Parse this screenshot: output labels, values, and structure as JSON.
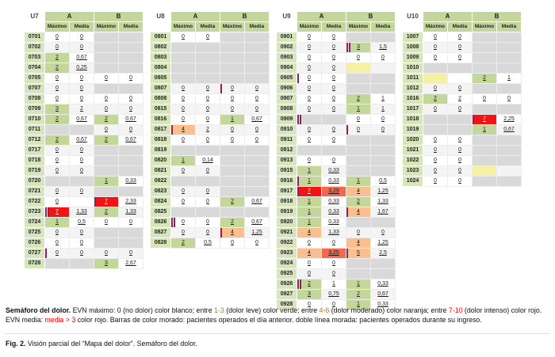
{
  "colors": {
    "header_green": "#c3d69b",
    "id_green": "#d8e4bc",
    "cell_green": "#c4d79b",
    "cell_orange": "#fabf8f",
    "cell_red": "#f01414",
    "media_red": "#f4694b",
    "cell_gray": "#d9d9d9",
    "cell_yellow": "#f4f1a4",
    "bar_purple": "#8e2157",
    "legend_green": "#77933c",
    "legend_orange": "#e36c09",
    "legend_red": "#ff0000"
  },
  "tables": [
    {
      "unit": "U7",
      "groups": [
        "A",
        "B"
      ],
      "subheaders": [
        "Máximo",
        "Media",
        "Máximo",
        "Media"
      ],
      "rows": [
        {
          "id": "0701",
          "a": [
            "0",
            "0"
          ],
          "b": [
            "GRAY",
            "GRAY"
          ]
        },
        {
          "id": "0702",
          "a": [
            "0",
            "0"
          ],
          "b": [
            "GRAY",
            "GRAY"
          ]
        },
        {
          "id": "0703",
          "a": [
            "2",
            "0,67"
          ],
          "b": [
            "GRAY",
            "GRAY"
          ]
        },
        {
          "id": "0704",
          "a": [
            "2",
            "0,25"
          ],
          "b": [
            "GRAY",
            "GRAY"
          ]
        },
        {
          "id": "0705",
          "a": [
            "0",
            "0"
          ],
          "b": [
            "0",
            "0"
          ]
        },
        {
          "id": "0707",
          "a": [
            "0",
            "0"
          ],
          "b": [
            "GRAY",
            "GRAY"
          ]
        },
        {
          "id": "0708",
          "a": [
            "0",
            "0"
          ],
          "b": [
            "0",
            "0"
          ]
        },
        {
          "id": "0709",
          "a": [
            "3",
            "2"
          ],
          "b": [
            "0",
            "0"
          ]
        },
        {
          "id": "0710",
          "a": [
            "2",
            "0,67"
          ],
          "b": [
            "2",
            "0,67"
          ]
        },
        {
          "id": "0711",
          "a": [
            "GRAY",
            "GRAY"
          ],
          "b": [
            "0",
            "0"
          ]
        },
        {
          "id": "0712",
          "a": [
            "2",
            "0,67"
          ],
          "b": [
            "2",
            "0,67"
          ]
        },
        {
          "id": "0717",
          "a": [
            "0",
            "0"
          ],
          "b": [
            "GRAY",
            "GRAY"
          ]
        },
        {
          "id": "0718",
          "a": [
            "0",
            "0"
          ],
          "b": [
            "GRAY",
            "GRAY"
          ]
        },
        {
          "id": "0719",
          "a": [
            "0",
            "0"
          ],
          "b": [
            "GRAY",
            "GRAY"
          ]
        },
        {
          "id": "0720",
          "a": [
            "GRAY",
            "GRAY"
          ],
          "b": [
            "1",
            "0,33"
          ]
        },
        {
          "id": "0721",
          "a": [
            "0",
            "0"
          ],
          "b": [
            "GRAY",
            "GRAY"
          ]
        },
        {
          "id": "0722",
          "a": [
            "0",
            ""
          ],
          "b": [
            "7",
            "2,33"
          ],
          "bar_b": 1
        },
        {
          "id": "0723",
          "a": [
            "7",
            "1,33"
          ],
          "b": [
            "2",
            "1,33"
          ],
          "bar_a": 2
        },
        {
          "id": "0724",
          "a": [
            "1",
            "0,5"
          ],
          "b": [
            "0",
            "0"
          ]
        },
        {
          "id": "0725",
          "a": [
            "0",
            "0"
          ],
          "b": [
            "GRAY",
            "GRAY"
          ]
        },
        {
          "id": "0726",
          "a": [
            "0",
            "0"
          ],
          "b": [
            "GRAY",
            "GRAY"
          ]
        },
        {
          "id": "0727",
          "a": [
            "0",
            "0"
          ],
          "b": [
            "0",
            "0"
          ],
          "bar_a": 1
        },
        {
          "id": "0728",
          "a": [
            "GRAY",
            "GRAY"
          ],
          "b": [
            "3",
            "2,67"
          ]
        }
      ]
    },
    {
      "unit": "U8",
      "groups": [
        "A",
        "B"
      ],
      "subheaders": [
        "Máximo",
        "Media",
        "Máximo",
        "Media"
      ],
      "rows": [
        {
          "id": "0801",
          "a": [
            "0",
            "0"
          ],
          "b": [
            "GRAY",
            "GRAY"
          ]
        },
        {
          "id": "0802",
          "a": [
            "GRAY",
            "GRAY"
          ],
          "b": [
            "GRAY",
            "GRAY"
          ]
        },
        {
          "id": "0803",
          "a": [
            "GRAY",
            "GRAY"
          ],
          "b": [
            "GRAY",
            "GRAY"
          ]
        },
        {
          "id": "0804",
          "a": [
            "GRAY",
            "GRAY"
          ],
          "b": [
            "GRAY",
            "GRAY"
          ]
        },
        {
          "id": "0805",
          "a": [
            "GRAY",
            "GRAY"
          ],
          "b": [
            "GRAY",
            "GRAY"
          ]
        },
        {
          "id": "0807",
          "a": [
            "0",
            "0"
          ],
          "b": [
            "0",
            "0"
          ],
          "bar_b": 1
        },
        {
          "id": "0808",
          "a": [
            "0",
            "0"
          ],
          "b": [
            "0",
            "0"
          ]
        },
        {
          "id": "0815",
          "a": [
            "0",
            "0"
          ],
          "b": [
            "0",
            "0"
          ]
        },
        {
          "id": "0816",
          "a": [
            "0",
            "0"
          ],
          "b": [
            "1",
            "0,67"
          ]
        },
        {
          "id": "0817",
          "a": [
            "4",
            "2"
          ],
          "b": [
            "0",
            "0"
          ],
          "bar_a": 1
        },
        {
          "id": "0818",
          "a": [
            "0",
            "0"
          ],
          "b": [
            "0",
            "0"
          ]
        },
        {
          "id": "0819",
          "a": [
            "GRAY",
            "GRAY"
          ],
          "b": [
            "GRAY",
            "GRAY"
          ]
        },
        {
          "id": "0820",
          "a": [
            "1",
            "0,14"
          ],
          "b": [
            "GRAY",
            "GRAY"
          ]
        },
        {
          "id": "0821",
          "a": [
            "0",
            "0"
          ],
          "b": [
            "GRAY",
            "GRAY"
          ]
        },
        {
          "id": "0822",
          "a": [
            "GRAY",
            "GRAY"
          ],
          "b": [
            "GRAY",
            "GRAY"
          ]
        },
        {
          "id": "0823",
          "a": [
            "0",
            "0"
          ],
          "b": [
            "GRAY",
            "GRAY"
          ]
        },
        {
          "id": "0824",
          "a": [
            "0",
            "0"
          ],
          "b": [
            "2",
            "0,67"
          ]
        },
        {
          "id": "0825",
          "a": [
            "GRAY",
            "GRAY"
          ],
          "b": [
            "GRAY",
            "GRAY"
          ]
        },
        {
          "id": "0826",
          "a": [
            "0",
            "0"
          ],
          "b": [
            "2",
            "0,67"
          ],
          "bar_a": 2
        },
        {
          "id": "0827",
          "a": [
            "0",
            "0"
          ],
          "b": [
            "4",
            "1,25"
          ],
          "bar_b": 1
        },
        {
          "id": "0828",
          "a": [
            "2",
            "0,5"
          ],
          "b": [
            "0",
            "0"
          ]
        }
      ]
    },
    {
      "unit": "U9",
      "groups": [
        "A",
        "B"
      ],
      "subheaders": [
        "Máximo",
        "Media",
        "Máximo",
        "Media"
      ],
      "rows": [
        {
          "id": "0901",
          "a": [
            "0",
            "0"
          ],
          "b": [
            "GRAY",
            "GRAY"
          ]
        },
        {
          "id": "0902",
          "a": [
            "0",
            "0"
          ],
          "b": [
            "3",
            "1,5"
          ],
          "bar_b": 2
        },
        {
          "id": "0903",
          "a": [
            "0",
            "0"
          ],
          "b": [
            "0",
            "0"
          ]
        },
        {
          "id": "0904",
          "a": [
            "0",
            "0"
          ],
          "b": [
            "YELLOW",
            ""
          ]
        },
        {
          "id": "0905",
          "a": [
            "0",
            "0"
          ],
          "b": [
            "GRAY",
            "GRAY"
          ],
          "bar_a": 1
        },
        {
          "id": "0906",
          "a": [
            "0",
            "0"
          ],
          "b": [
            "GRAY",
            "GRAY"
          ]
        },
        {
          "id": "0907",
          "a": [
            "0",
            "0"
          ],
          "b": [
            "2",
            "1"
          ]
        },
        {
          "id": "0908",
          "a": [
            "0",
            "0"
          ],
          "b": [
            "1",
            "1"
          ]
        },
        {
          "id": "0909",
          "a": [
            "GRAY",
            "GRAY"
          ],
          "b": [
            "0",
            "0"
          ],
          "bar_a": 2
        },
        {
          "id": "0910",
          "a": [
            "0",
            "0"
          ],
          "b": [
            "0",
            "0"
          ],
          "bar_b": 1
        },
        {
          "id": "0911",
          "a": [
            "0",
            "0"
          ],
          "b": [
            "GRAY",
            "GRAY"
          ]
        },
        {
          "id": "0912",
          "a": [
            "GRAY",
            "GRAY"
          ],
          "b": [
            "GRAY",
            "GRAY"
          ]
        },
        {
          "id": "0913",
          "a": [
            "0",
            "0"
          ],
          "b": [
            "GRAY",
            "GRAY"
          ]
        },
        {
          "id": "0915",
          "a": [
            "1",
            "0,33"
          ],
          "b": [
            "GRAY",
            "GRAY"
          ]
        },
        {
          "id": "0916",
          "a": [
            "1",
            "0,33"
          ],
          "b": [
            "1",
            "0,5"
          ],
          "bar_a": 1
        },
        {
          "id": "0917",
          "a": [
            "7",
            "3,29"
          ],
          "b": [
            "4",
            "1,25"
          ],
          "bar_a": 1
        },
        {
          "id": "0918",
          "a": [
            "1",
            "0,33"
          ],
          "b": [
            "2",
            "1,33"
          ]
        },
        {
          "id": "0919",
          "a": [
            "1",
            "0,33"
          ],
          "b": [
            "4",
            "1,67"
          ],
          "bar_b": 1
        },
        {
          "id": "0920",
          "a": [
            "1",
            "0,33"
          ],
          "b": [
            "GRAY",
            "GRAY"
          ]
        },
        {
          "id": "0921",
          "a": [
            "4",
            "1,33"
          ],
          "b": [
            "0",
            "0"
          ]
        },
        {
          "id": "0922",
          "a": [
            "0",
            "0"
          ],
          "b": [
            "4",
            "1,25"
          ]
        },
        {
          "id": "0923",
          "a": [
            "4",
            "3,25"
          ],
          "b": [
            "5",
            "2,5"
          ],
          "bar_b": 1
        },
        {
          "id": "0924",
          "a": [
            "0",
            "0"
          ],
          "b": [
            "GRAY",
            "GRAY"
          ]
        },
        {
          "id": "0925",
          "a": [
            "0",
            "0"
          ],
          "b": [
            "GRAY",
            "GRAY"
          ]
        },
        {
          "id": "0926",
          "a": [
            "2",
            "1"
          ],
          "b": [
            "1",
            "0,33"
          ],
          "bar_a": 2
        },
        {
          "id": "0927",
          "a": [
            "3",
            "0,75"
          ],
          "b": [
            "2",
            "0,67"
          ]
        },
        {
          "id": "0928",
          "a": [
            "0",
            "0"
          ],
          "b": [
            "1",
            "0,33"
          ]
        }
      ]
    },
    {
      "unit": "U10",
      "groups": [
        "A",
        "B"
      ],
      "subheaders": [
        "Máximo",
        "Media",
        "Máximo",
        "Media"
      ],
      "rows": [
        {
          "id": "1007",
          "a": [
            "0",
            "0"
          ],
          "b": [
            "GRAY",
            "GRAY"
          ]
        },
        {
          "id": "1008",
          "a": [
            "0",
            "0"
          ],
          "b": [
            "GRAY",
            "GRAY"
          ]
        },
        {
          "id": "1009",
          "a": [
            "0",
            "0"
          ],
          "b": [
            "GRAY",
            "GRAY"
          ]
        },
        {
          "id": "1010",
          "a": [
            "GRAY",
            "GRAY"
          ],
          "b": [
            "GRAY",
            "GRAY"
          ]
        },
        {
          "id": "1011",
          "a": [
            "YELLOW",
            ""
          ],
          "b": [
            "2",
            "1"
          ]
        },
        {
          "id": "1012",
          "a": [
            "0",
            "0"
          ],
          "b": [
            "GRAY",
            "GRAY"
          ]
        },
        {
          "id": "1016",
          "a": [
            "2",
            "2"
          ],
          "b": [
            "0",
            "0"
          ]
        },
        {
          "id": "1017",
          "a": [
            "0",
            "0"
          ],
          "b": [
            "GRAY",
            "GRAY"
          ]
        },
        {
          "id": "1018",
          "a": [
            "GRAY",
            "GRAY"
          ],
          "b": [
            "7",
            "2,25"
          ],
          "bar_b": 1
        },
        {
          "id": "1019",
          "a": [
            "GRAY",
            "GRAY"
          ],
          "b": [
            "1",
            "0,67"
          ]
        },
        {
          "id": "1020",
          "a": [
            "0",
            "0"
          ],
          "b": [
            "GRAY",
            "GRAY"
          ]
        },
        {
          "id": "1021",
          "a": [
            "0",
            "0"
          ],
          "b": [
            "GRAY",
            "GRAY"
          ]
        },
        {
          "id": "1022",
          "a": [
            "0",
            "0"
          ],
          "b": [
            "GRAY",
            "GRAY"
          ]
        },
        {
          "id": "1023",
          "a": [
            "0",
            "0"
          ],
          "b": [
            "YELLOW",
            ""
          ]
        },
        {
          "id": "1024",
          "a": [
            "0",
            "0"
          ],
          "b": [
            "GRAY",
            "GRAY"
          ]
        }
      ]
    }
  ],
  "legend_segments": [
    {
      "t": "Semáforo del dolor.",
      "b": true
    },
    {
      "t": " EVN máximo: 0 (no dolor) color blanco; entre "
    },
    {
      "t": "1-3",
      "c": "green"
    },
    {
      "t": " (dolor leve) color verde; entre "
    },
    {
      "t": "4-6",
      "c": "orange"
    },
    {
      "t": " (dolor moderado) color naranja; entre "
    },
    {
      "t": "7-10",
      "c": "red"
    },
    {
      "t": " (dolor intenso) color rojo. EVN media: "
    },
    {
      "t": "media > 3",
      "c": "red"
    },
    {
      "t": " color rojo. Barras de color morado: pacientes operados el día anterior. doble línea morada: pacientes operados durante su ingreso."
    }
  ],
  "fig_caption_segments": [
    {
      "t": "Fig. 2.",
      "b": true
    },
    {
      "t": " Visión parcial del “Mapa del dolor”. Semáforo del dolor."
    }
  ]
}
